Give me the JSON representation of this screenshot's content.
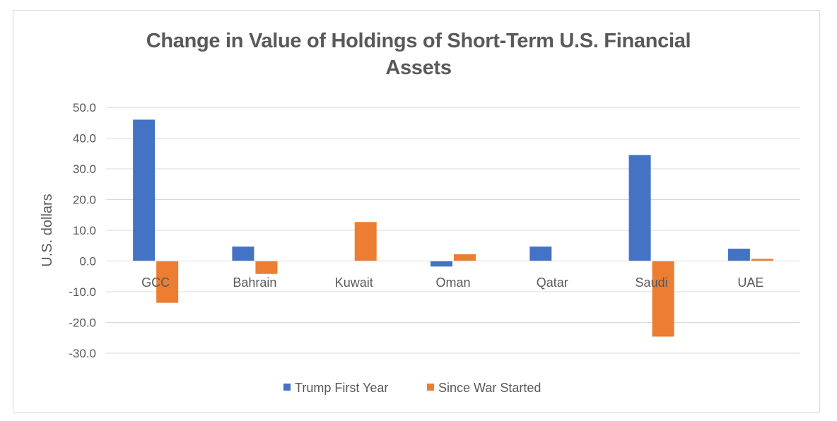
{
  "chart_data": {
    "type": "bar",
    "title_line1": "Change in Value of Holdings of Short-Term U.S. Financial",
    "title_line2": "Assets",
    "xlabel": "",
    "ylabel": "U.S. dollars",
    "categories": [
      "GCC",
      "Bahrain",
      "Kuwait",
      "Oman",
      "Qatar",
      "Saudi",
      "UAE"
    ],
    "series": [
      {
        "name": "Trump First Year",
        "color": "#4472c4",
        "values": [
          46.0,
          4.7,
          0.0,
          -1.8,
          4.7,
          34.5,
          4.0
        ]
      },
      {
        "name": "Since War Started",
        "color": "#ed7d31",
        "values": [
          -13.6,
          -4.2,
          12.7,
          2.2,
          0.0,
          -24.6,
          0.7
        ]
      }
    ],
    "ylim": [
      -30,
      50
    ],
    "yticks": [
      "50.0",
      "40.0",
      "30.0",
      "20.0",
      "10.0",
      "0.0",
      "-10.0",
      "-20.0",
      "-30.0"
    ],
    "ytick_values": [
      50,
      40,
      30,
      20,
      10,
      0,
      -10,
      -20,
      -30
    ],
    "grid": true,
    "legend_position": "bottom"
  }
}
